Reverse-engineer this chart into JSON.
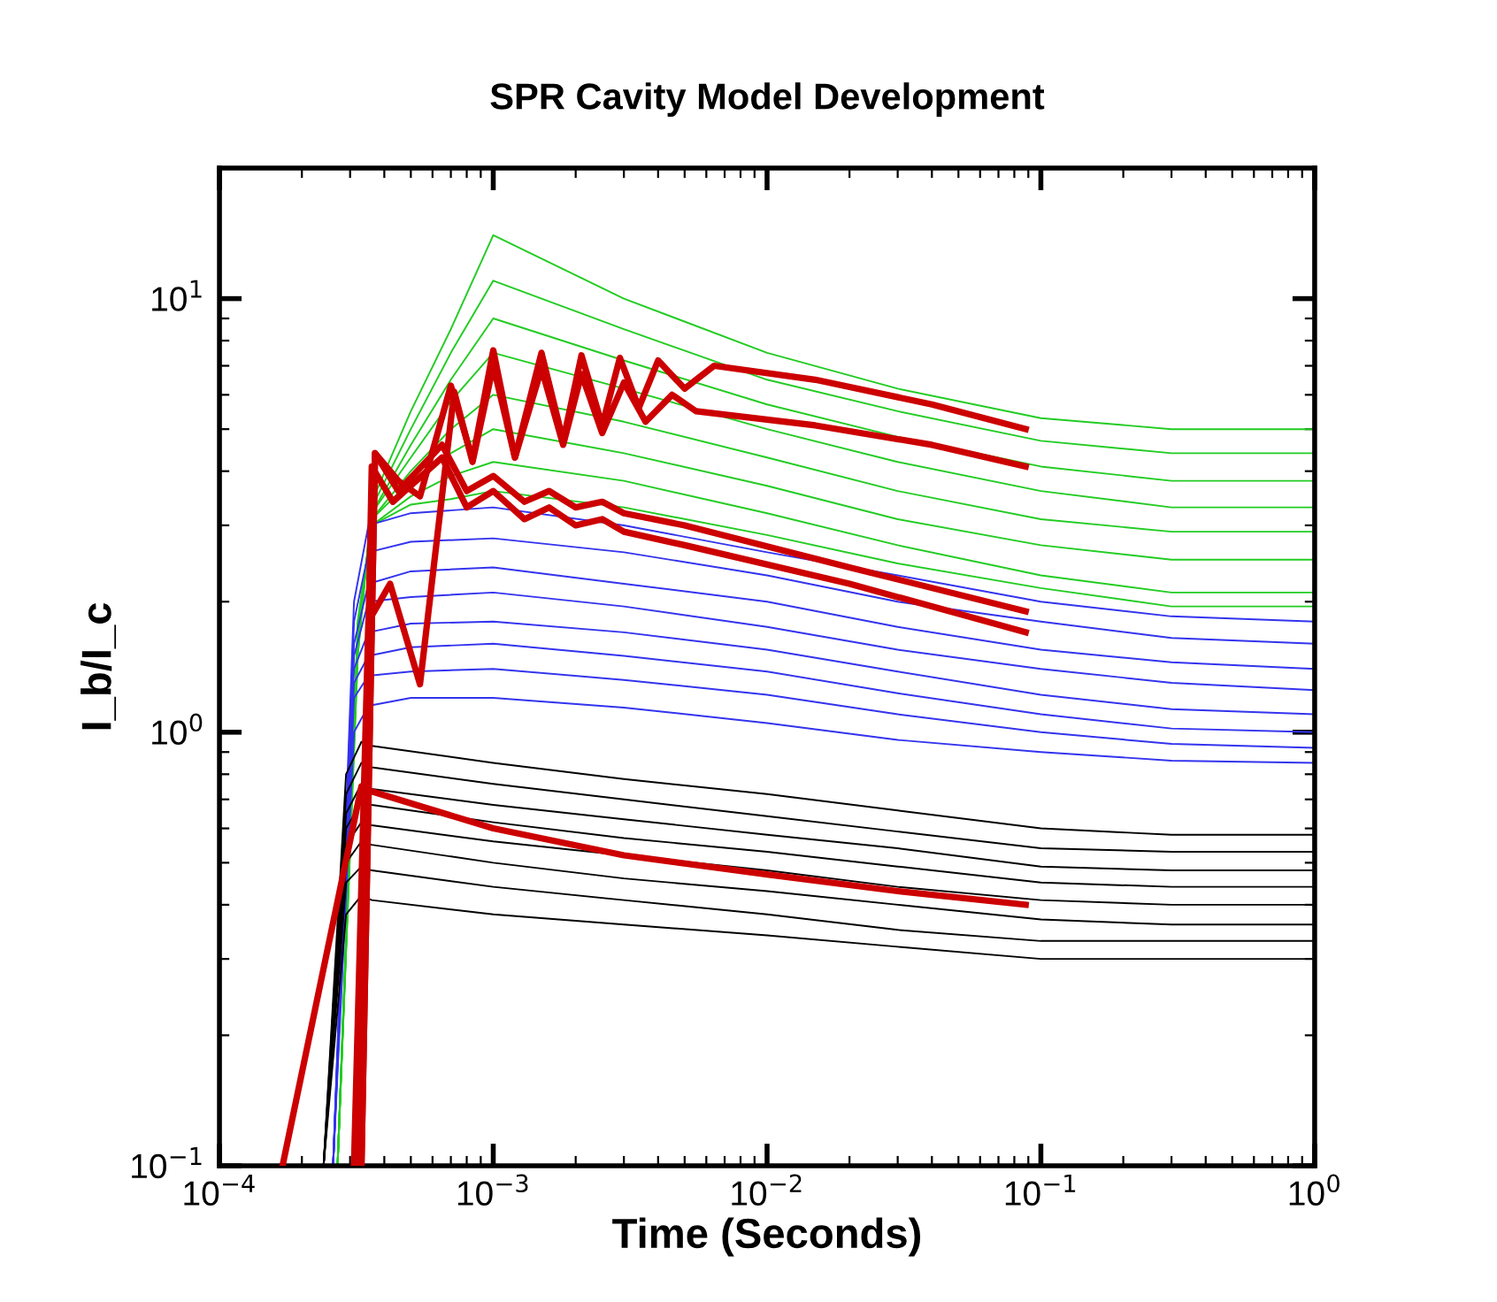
{
  "chart_data": {
    "type": "line",
    "title": "SPR Cavity Model Development",
    "xlabel": "Time (Seconds)",
    "ylabel": "I_b/I_c",
    "log": "xy",
    "line_style": "solid",
    "xlim": [
      0.0001,
      1
    ],
    "ylim": [
      0.1,
      20
    ],
    "xticks": [
      {
        "value": 0.0001,
        "label": "10$^{−4}$"
      },
      {
        "value": 0.001,
        "label": "10$^{−3}$"
      },
      {
        "value": 0.01,
        "label": "10$^{−2}$"
      },
      {
        "value": 0.1,
        "label": "10$^{−1}$"
      },
      {
        "value": 1,
        "label": "10$^{0}$"
      }
    ],
    "yticks": [
      {
        "value": 0.1,
        "label": "10$^{−1}$"
      },
      {
        "value": 1,
        "label": "10$^{0}$"
      },
      {
        "value": 10,
        "label": "10$^{1}$"
      }
    ],
    "series": [
      {
        "color": "#22cc22",
        "x": [
          0.00027,
          0.00032,
          0.00036,
          0.0005,
          0.0007,
          0.001,
          0.003,
          0.01,
          0.03,
          0.1,
          0.3,
          1
        ],
        "values": [
          0.1,
          1.5,
          3.4,
          5.5,
          8.5,
          14,
          10,
          7.5,
          6.2,
          5.3,
          5.0,
          5.0
        ]
      },
      {
        "color": "#22cc22",
        "x": [
          0.00027,
          0.00032,
          0.00036,
          0.0005,
          0.0007,
          0.001,
          0.003,
          0.01,
          0.03,
          0.1,
          0.3,
          1
        ],
        "values": [
          0.1,
          1.5,
          3.3,
          5,
          7.5,
          11,
          8.5,
          6.5,
          5.5,
          4.7,
          4.4,
          4.4
        ]
      },
      {
        "color": "#22cc22",
        "x": [
          0.00027,
          0.00032,
          0.00036,
          0.0005,
          0.0007,
          0.001,
          0.003,
          0.01,
          0.03,
          0.1,
          0.3,
          1
        ],
        "values": [
          0.1,
          1.6,
          3.2,
          4.6,
          6.5,
          9,
          7.2,
          5.7,
          4.8,
          4.1,
          3.8,
          3.8
        ]
      },
      {
        "color": "#22cc22",
        "x": [
          0.00027,
          0.00032,
          0.00036,
          0.0005,
          0.0007,
          0.001,
          0.003,
          0.01,
          0.03,
          0.1,
          0.3,
          1
        ],
        "values": [
          0.1,
          1.6,
          3.2,
          4.3,
          5.8,
          7.5,
          6.2,
          5.0,
          4.2,
          3.6,
          3.3,
          3.3
        ]
      },
      {
        "color": "#22cc22",
        "x": [
          0.00027,
          0.00032,
          0.00036,
          0.0005,
          0.0007,
          0.001,
          0.003,
          0.01,
          0.03,
          0.1,
          0.3,
          1
        ],
        "values": [
          0.1,
          1.7,
          3.1,
          4.0,
          5.0,
          6,
          5.2,
          4.3,
          3.6,
          3.1,
          2.9,
          2.9
        ]
      },
      {
        "color": "#22cc22",
        "x": [
          0.00027,
          0.00032,
          0.00036,
          0.0005,
          0.0007,
          0.001,
          0.003,
          0.01,
          0.03,
          0.1,
          0.3,
          1
        ],
        "values": [
          0.1,
          1.7,
          3.1,
          3.8,
          4.4,
          5,
          4.4,
          3.7,
          3.1,
          2.7,
          2.5,
          2.5
        ]
      },
      {
        "color": "#22cc22",
        "x": [
          0.00027,
          0.00032,
          0.00036,
          0.0005,
          0.0007,
          0.001,
          0.003,
          0.01,
          0.03,
          0.1,
          0.3,
          1
        ],
        "values": [
          0.1,
          1.8,
          3.0,
          3.5,
          3.9,
          4.2,
          3.8,
          3.2,
          2.7,
          2.3,
          2.1,
          2.1
        ]
      },
      {
        "color": "#22cc22",
        "x": [
          0.00027,
          0.00032,
          0.00036,
          0.0005,
          0.0007,
          0.001,
          0.003,
          0.01,
          0.03,
          0.1,
          0.3,
          1
        ],
        "values": [
          0.1,
          1.8,
          3.0,
          3.35,
          3.45,
          3.6,
          3.3,
          2.85,
          2.45,
          2.15,
          1.95,
          1.95
        ]
      },
      {
        "color": "#3333ee",
        "x": [
          0.00026,
          0.00031,
          0.00035,
          0.0005,
          0.001,
          0.003,
          0.01,
          0.03,
          0.1,
          0.3,
          1
        ],
        "values": [
          0.1,
          2.0,
          3.0,
          3.2,
          3.3,
          3.0,
          2.6,
          2.3,
          2.0,
          1.85,
          1.8
        ]
      },
      {
        "color": "#3333ee",
        "x": [
          0.00026,
          0.00031,
          0.00035,
          0.0005,
          0.001,
          0.003,
          0.01,
          0.03,
          0.1,
          0.3,
          1
        ],
        "values": [
          0.1,
          1.8,
          2.6,
          2.75,
          2.8,
          2.6,
          2.3,
          2.0,
          1.8,
          1.65,
          1.6
        ]
      },
      {
        "color": "#3333ee",
        "x": [
          0.00026,
          0.00031,
          0.00035,
          0.0005,
          0.001,
          0.003,
          0.01,
          0.03,
          0.1,
          0.3,
          1
        ],
        "values": [
          0.1,
          1.6,
          2.2,
          2.35,
          2.4,
          2.2,
          2.0,
          1.75,
          1.55,
          1.45,
          1.4
        ]
      },
      {
        "color": "#3333ee",
        "x": [
          0.00026,
          0.00031,
          0.00035,
          0.0005,
          0.001,
          0.003,
          0.01,
          0.03,
          0.1,
          0.3,
          1
        ],
        "values": [
          0.1,
          1.5,
          2.0,
          2.05,
          2.1,
          1.95,
          1.75,
          1.55,
          1.4,
          1.3,
          1.25
        ]
      },
      {
        "color": "#3333ee",
        "x": [
          0.00026,
          0.00031,
          0.00035,
          0.0005,
          0.001,
          0.003,
          0.01,
          0.03,
          0.1,
          0.3,
          1
        ],
        "values": [
          0.1,
          1.4,
          1.7,
          1.78,
          1.8,
          1.7,
          1.55,
          1.38,
          1.22,
          1.13,
          1.1
        ]
      },
      {
        "color": "#3333ee",
        "x": [
          0.00026,
          0.00031,
          0.00035,
          0.0005,
          0.001,
          0.003,
          0.01,
          0.03,
          0.1,
          0.3,
          1
        ],
        "values": [
          0.1,
          1.3,
          1.5,
          1.57,
          1.6,
          1.5,
          1.38,
          1.23,
          1.1,
          1.02,
          1.0
        ]
      },
      {
        "color": "#3333ee",
        "x": [
          0.00026,
          0.00031,
          0.00035,
          0.0005,
          0.001,
          0.003,
          0.01,
          0.03,
          0.1,
          0.3,
          1
        ],
        "values": [
          0.1,
          1.2,
          1.35,
          1.38,
          1.4,
          1.32,
          1.22,
          1.1,
          1.0,
          0.94,
          0.92
        ]
      },
      {
        "color": "#3333ee",
        "x": [
          0.00026,
          0.00031,
          0.00035,
          0.0005,
          0.001,
          0.003,
          0.01,
          0.03,
          0.1,
          0.3,
          1
        ],
        "values": [
          0.1,
          1.0,
          1.15,
          1.2,
          1.2,
          1.14,
          1.05,
          0.96,
          0.9,
          0.86,
          0.85
        ]
      },
      {
        "color": "#000000",
        "x": [
          0.00024,
          0.00029,
          0.00033,
          0.00036,
          0.001,
          0.003,
          0.01,
          0.03,
          0.1,
          0.3,
          1
        ],
        "values": [
          0.1,
          0.8,
          0.95,
          0.93,
          0.85,
          0.78,
          0.72,
          0.66,
          0.6,
          0.58,
          0.58
        ]
      },
      {
        "color": "#000000",
        "x": [
          0.00024,
          0.00029,
          0.00033,
          0.00036,
          0.001,
          0.003,
          0.01,
          0.03,
          0.1,
          0.3,
          1
        ],
        "values": [
          0.1,
          0.72,
          0.85,
          0.83,
          0.76,
          0.7,
          0.64,
          0.59,
          0.54,
          0.53,
          0.53
        ]
      },
      {
        "color": "#000000",
        "x": [
          0.00024,
          0.00029,
          0.00033,
          0.00036,
          0.001,
          0.003,
          0.01,
          0.03,
          0.1,
          0.3,
          1
        ],
        "values": [
          0.1,
          0.65,
          0.76,
          0.74,
          0.68,
          0.63,
          0.58,
          0.54,
          0.49,
          0.48,
          0.48
        ]
      },
      {
        "color": "#000000",
        "x": [
          0.00024,
          0.00029,
          0.00033,
          0.00036,
          0.001,
          0.003,
          0.01,
          0.03,
          0.1,
          0.3,
          1
        ],
        "values": [
          0.1,
          0.6,
          0.69,
          0.68,
          0.62,
          0.57,
          0.53,
          0.49,
          0.45,
          0.44,
          0.44
        ]
      },
      {
        "color": "#000000",
        "x": [
          0.00024,
          0.00029,
          0.00033,
          0.00036,
          0.001,
          0.003,
          0.01,
          0.03,
          0.1,
          0.3,
          1
        ],
        "values": [
          0.1,
          0.55,
          0.62,
          0.61,
          0.56,
          0.52,
          0.48,
          0.44,
          0.41,
          0.4,
          0.4
        ]
      },
      {
        "color": "#000000",
        "x": [
          0.00024,
          0.00029,
          0.00033,
          0.00036,
          0.001,
          0.003,
          0.01,
          0.03,
          0.1,
          0.3,
          1
        ],
        "values": [
          0.1,
          0.5,
          0.56,
          0.55,
          0.5,
          0.46,
          0.43,
          0.4,
          0.37,
          0.36,
          0.36
        ]
      },
      {
        "color": "#000000",
        "x": [
          0.00024,
          0.00029,
          0.00033,
          0.00036,
          0.001,
          0.003,
          0.01,
          0.03,
          0.1,
          0.3,
          1
        ],
        "values": [
          0.1,
          0.45,
          0.49,
          0.48,
          0.44,
          0.41,
          0.38,
          0.35,
          0.33,
          0.33,
          0.33
        ]
      },
      {
        "color": "#000000",
        "x": [
          0.00024,
          0.00029,
          0.00033,
          0.00036,
          0.001,
          0.003,
          0.01,
          0.03,
          0.1,
          0.3,
          1
        ],
        "values": [
          0.1,
          0.38,
          0.42,
          0.41,
          0.38,
          0.36,
          0.34,
          0.32,
          0.3,
          0.3,
          0.3
        ]
      },
      {
        "color": "#cc0000",
        "x": [
          0.00033,
          0.00037,
          0.00045,
          0.00054,
          0.0007,
          0.00084,
          0.001,
          0.0012,
          0.0015,
          0.0018,
          0.0021,
          0.0025,
          0.0029,
          0.0034,
          0.004,
          0.005,
          0.0064,
          0.015,
          0.04,
          0.088
        ],
        "values": [
          0.1,
          4.4,
          3.8,
          3.5,
          6.3,
          4.25,
          7.6,
          4.3,
          7.5,
          4.7,
          7.4,
          5.1,
          7.3,
          5.6,
          7.2,
          6.2,
          7.0,
          6.5,
          5.7,
          5.0
        ]
      },
      {
        "color": "#cc0000",
        "x": [
          0.00031,
          0.00035,
          0.00042,
          0.00054,
          0.00072,
          0.00084,
          0.001,
          0.0012,
          0.0015,
          0.0018,
          0.0021,
          0.0025,
          0.003,
          0.0036,
          0.0045,
          0.0055,
          0.015,
          0.04,
          0.088
        ],
        "values": [
          0.1,
          1.8,
          2.2,
          1.29,
          6.1,
          4.2,
          7.0,
          4.3,
          6.9,
          4.6,
          6.7,
          4.9,
          6.4,
          5.2,
          6.0,
          5.5,
          5.1,
          4.6,
          4.1
        ]
      },
      {
        "color": "#cc0000",
        "x": [
          0.00033,
          0.00037,
          0.00045,
          0.00065,
          0.0008,
          0.001,
          0.0013,
          0.0016,
          0.002,
          0.0025,
          0.003,
          0.005,
          0.02,
          0.088
        ],
        "values": [
          0.1,
          4.4,
          3.6,
          4.6,
          3.6,
          3.9,
          3.4,
          3.6,
          3.3,
          3.4,
          3.2,
          3.0,
          2.4,
          1.9
        ]
      },
      {
        "color": "#cc0000",
        "x": [
          0.00032,
          0.00036,
          0.00043,
          0.00065,
          0.0008,
          0.001,
          0.0013,
          0.0016,
          0.002,
          0.0025,
          0.003,
          0.005,
          0.02,
          0.088
        ],
        "values": [
          0.1,
          4.1,
          3.4,
          4.3,
          3.3,
          3.6,
          3.1,
          3.3,
          3.0,
          3.1,
          2.9,
          2.7,
          2.2,
          1.7
        ]
      },
      {
        "color": "#cc0000",
        "x": [
          0.00017,
          0.00033,
          0.00036,
          0.001,
          0.003,
          0.01,
          0.03,
          0.088
        ],
        "values": [
          0.1,
          0.75,
          0.73,
          0.6,
          0.52,
          0.47,
          0.43,
          0.4
        ]
      }
    ]
  }
}
